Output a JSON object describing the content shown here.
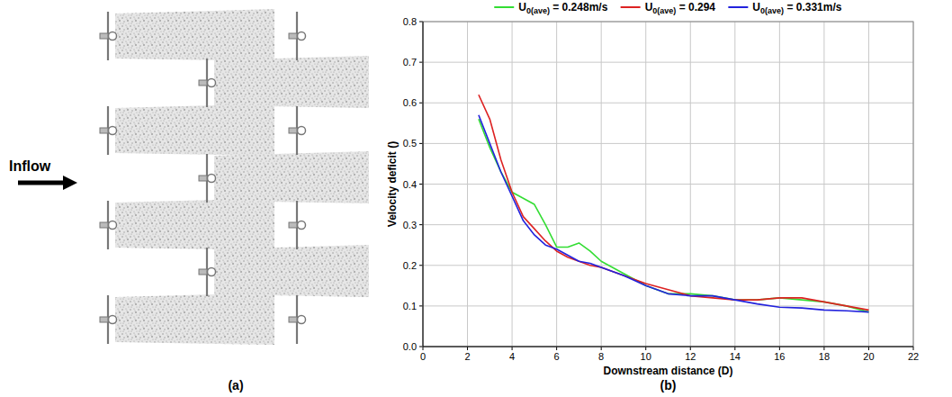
{
  "panel_labels": [
    "(a)",
    "(b)"
  ],
  "diagram": {
    "inflow_label": "Inflow"
  },
  "chart_data": {
    "type": "line",
    "x_label": "Downstream distance (D)",
    "y_label": "Velocity deficit ()",
    "x": [
      2.5,
      3,
      3.5,
      4,
      4.5,
      5,
      5.5,
      6,
      6.5,
      7,
      7.5,
      8,
      8.5,
      9,
      10,
      11,
      12,
      13,
      14,
      15,
      16,
      17,
      18,
      19,
      20
    ],
    "series": [
      {
        "name": "U0(ave) = 0.248m/s",
        "color": "#33dd33",
        "values": [
          0.56,
          0.49,
          0.43,
          0.38,
          0.365,
          0.35,
          0.3,
          0.245,
          0.245,
          0.255,
          0.235,
          0.21,
          0.195,
          0.18,
          0.15,
          0.13,
          0.13,
          0.125,
          0.115,
          0.115,
          0.12,
          0.115,
          0.11,
          0.1,
          0.085
        ]
      },
      {
        "name": "U0(ave) = 0.294",
        "color": "#dd2222",
        "values": [
          0.62,
          0.56,
          0.46,
          0.38,
          0.32,
          0.29,
          0.26,
          0.235,
          0.22,
          0.21,
          0.2,
          0.195,
          0.185,
          0.175,
          0.155,
          0.14,
          0.125,
          0.12,
          0.115,
          0.115,
          0.12,
          0.12,
          0.11,
          0.1,
          0.09
        ]
      },
      {
        "name": "U0(ave) = 0.331m/s",
        "color": "#2222dd",
        "values": [
          0.57,
          0.5,
          0.43,
          0.37,
          0.31,
          0.275,
          0.25,
          0.24,
          0.225,
          0.21,
          0.205,
          0.195,
          0.185,
          0.175,
          0.15,
          0.13,
          0.125,
          0.125,
          0.115,
          0.105,
          0.097,
          0.095,
          0.09,
          0.088,
          0.085
        ]
      }
    ],
    "xlim": [
      0,
      22
    ],
    "xticks": [
      0,
      2,
      4,
      6,
      8,
      10,
      12,
      14,
      16,
      18,
      20,
      22
    ],
    "ylim": [
      0,
      0.8
    ],
    "yticks": [
      {
        "value": 0,
        "label": "0.0"
      },
      0.1,
      0.2,
      0.3,
      0.4,
      0.5,
      0.6,
      0.7,
      0.8
    ],
    "grid": true,
    "legend": "top"
  }
}
